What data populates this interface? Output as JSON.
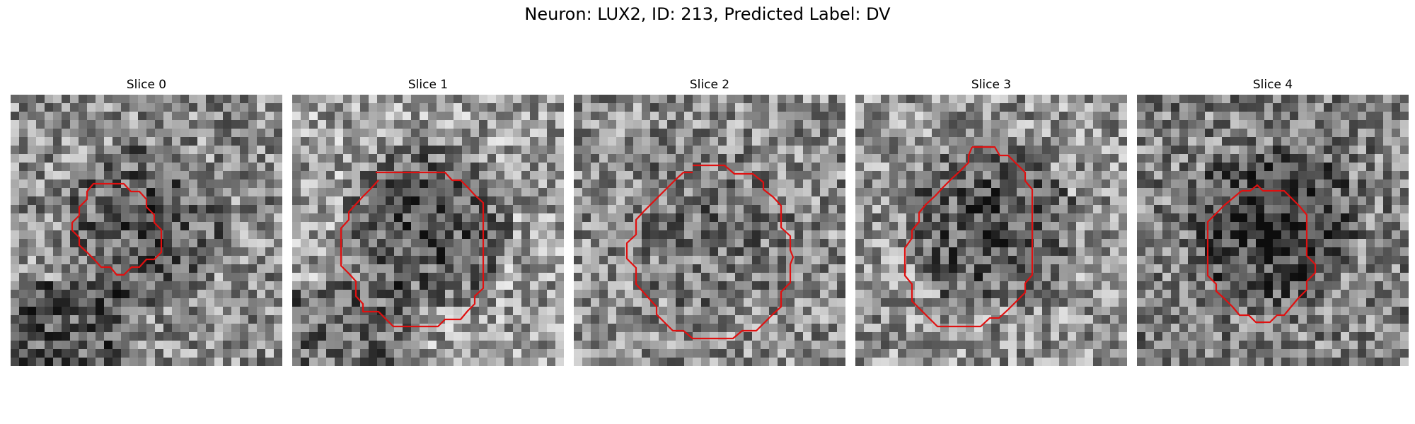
{
  "figure": {
    "title": "Neuron: LUX2, ID: 213, Predicted Label: DV"
  },
  "colors": {
    "contour": "#e01010",
    "background": "#ffffff"
  },
  "panels": [
    {
      "title": "Slice 0",
      "seed": 11,
      "base": 0.55,
      "dark_region_strength": 0.25,
      "lower_dark": true
    },
    {
      "title": "Slice 1",
      "seed": 23,
      "base": 0.62,
      "dark_region_strength": 0.35,
      "lower_dark": true
    },
    {
      "title": "Slice 2",
      "seed": 37,
      "base": 0.55,
      "dark_region_strength": 0.12,
      "lower_dark": false
    },
    {
      "title": "Slice 3",
      "seed": 41,
      "base": 0.58,
      "dark_region_strength": 0.32,
      "lower_dark": false
    },
    {
      "title": "Slice 4",
      "seed": 53,
      "base": 0.5,
      "dark_region_strength": 0.3,
      "lower_dark": false
    }
  ]
}
